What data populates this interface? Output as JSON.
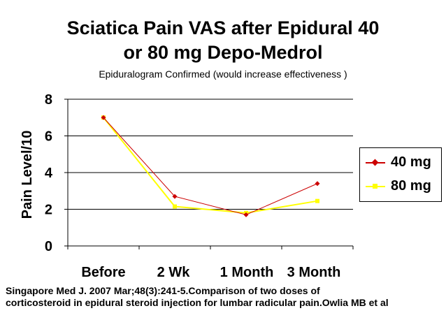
{
  "chart_data": {
    "type": "line",
    "title_line1": "Sciatica Pain VAS after Epidural 40",
    "title_line2": "or 80 mg Depo-Medrol",
    "subtitle": "Epiduralogram Confirmed (would increase effectiveness )",
    "ylabel": "Pain Level/10",
    "xlabel": "",
    "categories": [
      "Before",
      "2 Wk",
      "1 Month",
      "3 Month"
    ],
    "ylim": [
      0,
      8
    ],
    "yticks": [
      0,
      2,
      4,
      6,
      8
    ],
    "grid": true,
    "legend_position": "right",
    "series": [
      {
        "name": "40 mg",
        "values": [
          7.0,
          2.7,
          1.7,
          3.4
        ],
        "color": "#cc0000"
      },
      {
        "name": "80 mg",
        "values": [
          7.0,
          2.15,
          1.8,
          2.45
        ],
        "color": "#ffff00"
      }
    ]
  },
  "footer": {
    "line1": "Singapore Med J. 2007 Mar;48(3):241-5.Comparison of two doses of",
    "line2": "corticosteroid in epidural steroid injection for lumbar radicular pain.Owlia MB et al"
  }
}
